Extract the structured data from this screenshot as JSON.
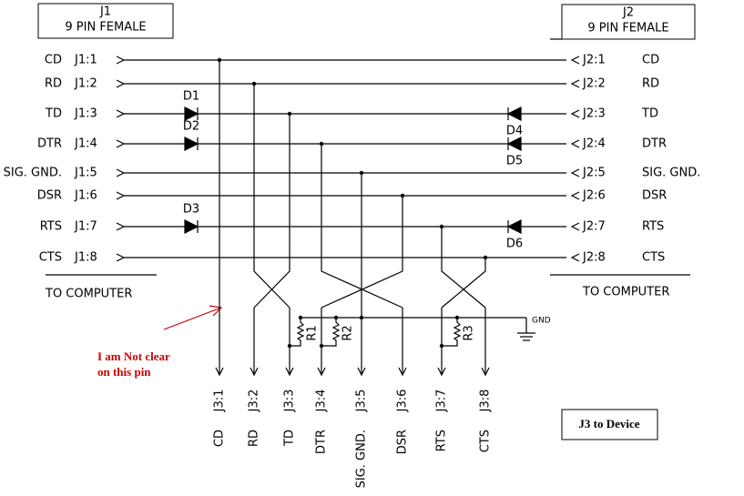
{
  "j1": {
    "title": "J1",
    "subtitle": "9 PIN FEMALE"
  },
  "j2": {
    "title": "J2",
    "subtitle": "9 PIN FEMALE"
  },
  "left_pins": [
    {
      "signal": "CD",
      "pin": "J1:1"
    },
    {
      "signal": "RD",
      "pin": "J1:2"
    },
    {
      "signal": "TD",
      "pin": "J1:3"
    },
    {
      "signal": "DTR",
      "pin": "J1:4"
    },
    {
      "signal": "SIG. GND.",
      "pin": "J1:5"
    },
    {
      "signal": "DSR",
      "pin": "J1:6"
    },
    {
      "signal": "RTS",
      "pin": "J1:7"
    },
    {
      "signal": "CTS",
      "pin": "J1:8"
    }
  ],
  "right_pins": [
    {
      "pin": "J2:1",
      "signal": "CD"
    },
    {
      "pin": "J2:2",
      "signal": "RD"
    },
    {
      "pin": "J2:3",
      "signal": "TD"
    },
    {
      "pin": "J2:4",
      "signal": "DTR"
    },
    {
      "pin": "J2:5",
      "signal": "SIG. GND."
    },
    {
      "pin": "J2:6",
      "signal": "DSR"
    },
    {
      "pin": "J2:7",
      "signal": "RTS"
    },
    {
      "pin": "J2:8",
      "signal": "CTS"
    }
  ],
  "diodes": [
    "D1",
    "D2",
    "D3",
    "D4",
    "D5",
    "D6"
  ],
  "resistors": [
    "R1",
    "R2",
    "R3"
  ],
  "ground": "GND",
  "left_note": "TO COMPUTER",
  "right_note": "TO COMPUTER",
  "annotation": [
    "I am Not clear",
    "on this pin"
  ],
  "j3_pins": [
    {
      "pin": "J3:1",
      "signal": "CD"
    },
    {
      "pin": "J3:2",
      "signal": "RD"
    },
    {
      "pin": "J3:3",
      "signal": "TD"
    },
    {
      "pin": "J3:4",
      "signal": "DTR"
    },
    {
      "pin": "J3:5",
      "signal": "SIG. GND."
    },
    {
      "pin": "J3:6",
      "signal": "DSR"
    },
    {
      "pin": "J3:7",
      "signal": "RTS"
    },
    {
      "pin": "J3:8",
      "signal": "CTS"
    }
  ],
  "j3_label": "J3 to Device"
}
